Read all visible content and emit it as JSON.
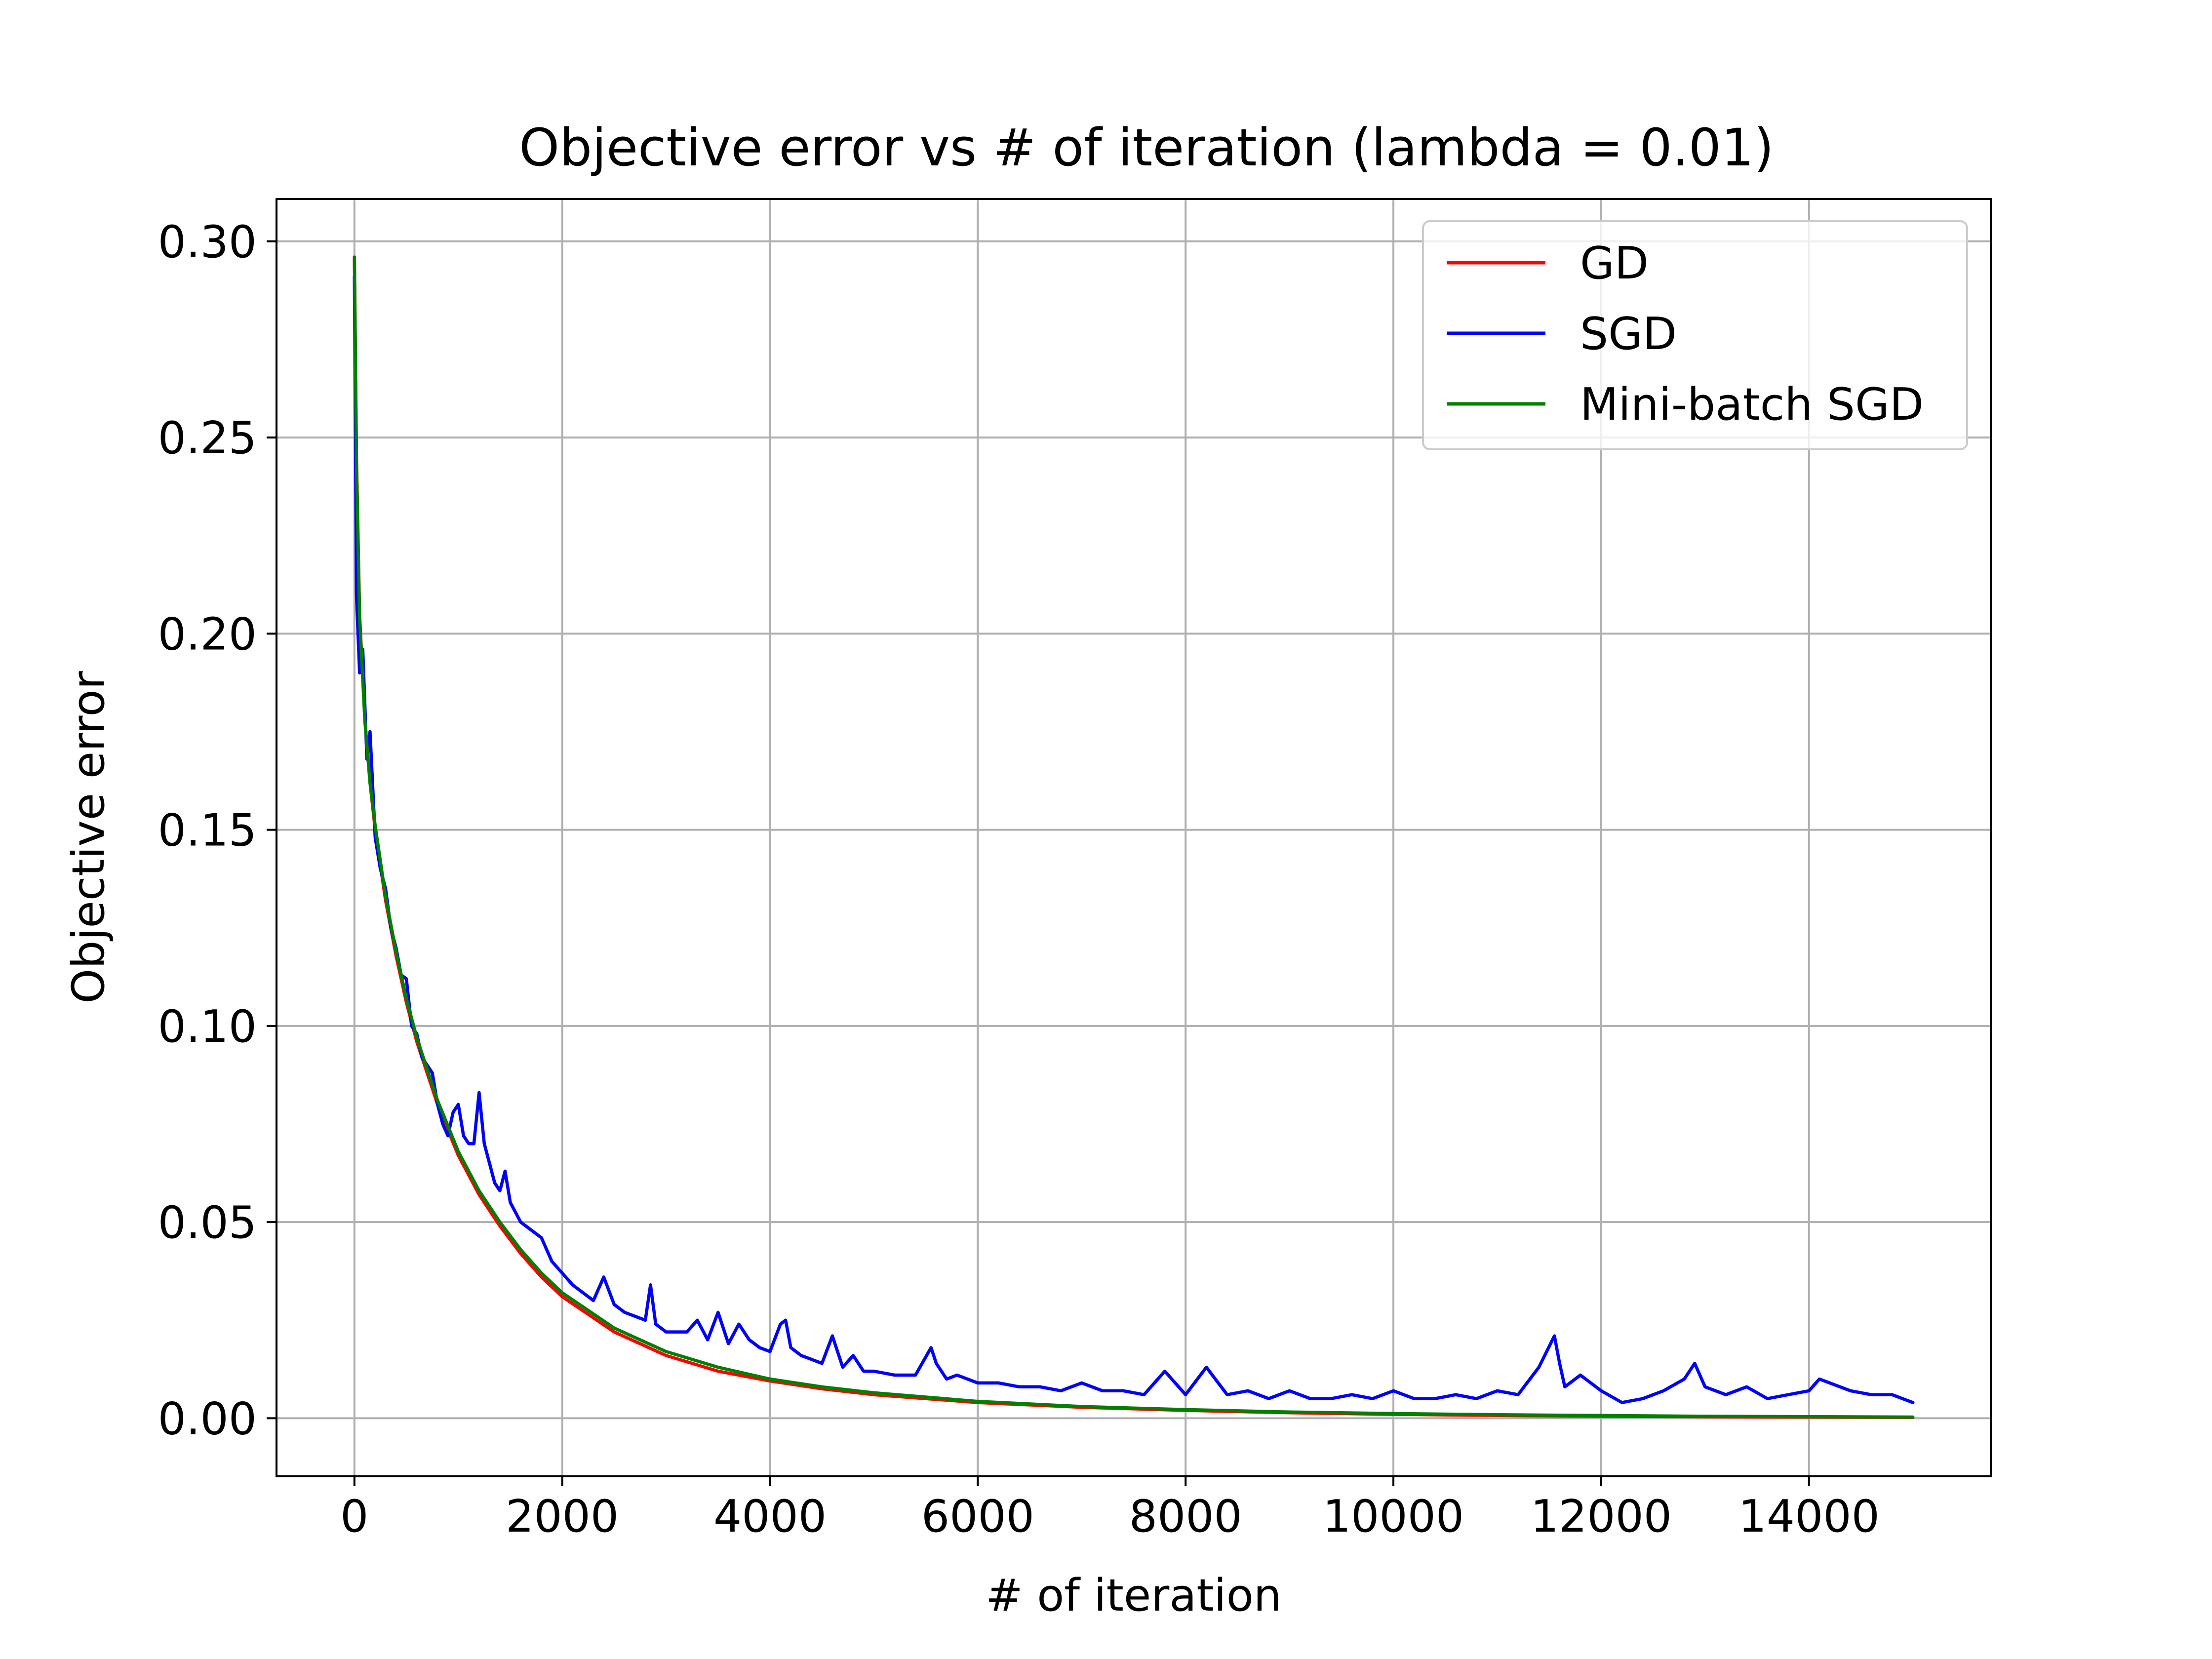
{
  "chart_data": {
    "type": "line",
    "title": "Objective error vs # of iteration (lambda = 0.01)",
    "xlabel": "# of iteration",
    "ylabel": "Objective error",
    "xlim": [
      -750,
      15750
    ],
    "ylim": [
      -0.0148,
      0.3108
    ],
    "xticks": [
      0,
      2000,
      4000,
      6000,
      8000,
      10000,
      12000,
      14000
    ],
    "xtick_labels": [
      "0",
      "2000",
      "4000",
      "6000",
      "8000",
      "10000",
      "12000",
      "14000"
    ],
    "yticks": [
      0.0,
      0.05,
      0.1,
      0.15,
      0.2,
      0.25,
      0.3
    ],
    "ytick_labels": [
      "0.00",
      "0.05",
      "0.10",
      "0.15",
      "0.20",
      "0.25",
      "0.30"
    ],
    "grid": true,
    "legend_position": "top-right",
    "series": [
      {
        "name": "GD",
        "color": "#ff0000",
        "x": [
          0,
          20,
          50,
          100,
          150,
          200,
          300,
          400,
          500,
          600,
          800,
          1000,
          1200,
          1400,
          1600,
          1800,
          2000,
          2500,
          3000,
          3500,
          4000,
          4500,
          5000,
          6000,
          7000,
          8000,
          9000,
          10000,
          11000,
          12000,
          13000,
          14000,
          15000
        ],
        "y": [
          0.296,
          0.245,
          0.205,
          0.178,
          0.162,
          0.15,
          0.132,
          0.118,
          0.106,
          0.096,
          0.08,
          0.067,
          0.057,
          0.049,
          0.042,
          0.036,
          0.031,
          0.022,
          0.016,
          0.012,
          0.0095,
          0.0075,
          0.006,
          0.004,
          0.0028,
          0.002,
          0.0014,
          0.001,
          0.0007,
          0.0005,
          0.0004,
          0.0003,
          0.0002
        ]
      },
      {
        "name": "SGD",
        "color": "#0000ff",
        "x": [
          0,
          20,
          50,
          80,
          120,
          150,
          200,
          250,
          300,
          350,
          400,
          450,
          500,
          550,
          600,
          650,
          700,
          750,
          800,
          850,
          900,
          950,
          1000,
          1050,
          1100,
          1150,
          1200,
          1250,
          1300,
          1350,
          1400,
          1450,
          1500,
          1600,
          1700,
          1800,
          1900,
          2000,
          2100,
          2200,
          2300,
          2400,
          2500,
          2600,
          2700,
          2800,
          2850,
          2900,
          3000,
          3200,
          3300,
          3400,
          3500,
          3600,
          3700,
          3800,
          3900,
          4000,
          4100,
          4150,
          4200,
          4300,
          4400,
          4500,
          4600,
          4700,
          4800,
          4900,
          5000,
          5200,
          5400,
          5550,
          5600,
          5700,
          5800,
          6000,
          6200,
          6400,
          6600,
          6800,
          7000,
          7200,
          7400,
          7600,
          7800,
          8000,
          8200,
          8400,
          8600,
          8800,
          9000,
          9200,
          9400,
          9600,
          9800,
          10000,
          10200,
          10400,
          10600,
          10800,
          11000,
          11200,
          11400,
          11550,
          11600,
          11650,
          11800,
          12000,
          12200,
          12400,
          12600,
          12800,
          12900,
          13000,
          13200,
          13400,
          13600,
          13800,
          14000,
          14100,
          14200,
          14400,
          14600,
          14800,
          15000
        ],
        "y": [
          0.291,
          0.21,
          0.19,
          0.196,
          0.168,
          0.175,
          0.148,
          0.14,
          0.135,
          0.125,
          0.12,
          0.113,
          0.112,
          0.1,
          0.098,
          0.092,
          0.09,
          0.088,
          0.08,
          0.075,
          0.072,
          0.078,
          0.08,
          0.072,
          0.07,
          0.07,
          0.083,
          0.07,
          0.065,
          0.06,
          0.058,
          0.063,
          0.055,
          0.05,
          0.048,
          0.046,
          0.04,
          0.037,
          0.034,
          0.032,
          0.03,
          0.036,
          0.029,
          0.027,
          0.026,
          0.025,
          0.034,
          0.024,
          0.022,
          0.022,
          0.025,
          0.02,
          0.027,
          0.019,
          0.024,
          0.02,
          0.018,
          0.017,
          0.024,
          0.025,
          0.018,
          0.016,
          0.015,
          0.014,
          0.021,
          0.013,
          0.016,
          0.012,
          0.012,
          0.011,
          0.011,
          0.018,
          0.014,
          0.01,
          0.011,
          0.009,
          0.009,
          0.008,
          0.008,
          0.007,
          0.009,
          0.007,
          0.007,
          0.006,
          0.012,
          0.006,
          0.013,
          0.006,
          0.007,
          0.005,
          0.007,
          0.005,
          0.005,
          0.006,
          0.005,
          0.007,
          0.005,
          0.005,
          0.006,
          0.005,
          0.007,
          0.006,
          0.013,
          0.021,
          0.014,
          0.008,
          0.011,
          0.007,
          0.004,
          0.005,
          0.007,
          0.01,
          0.014,
          0.008,
          0.006,
          0.008,
          0.005,
          0.006,
          0.007,
          0.01,
          0.009,
          0.007,
          0.006,
          0.006,
          0.004
        ]
      },
      {
        "name": "Mini-batch SGD",
        "color": "#008000",
        "x": [
          0,
          20,
          50,
          100,
          150,
          200,
          300,
          400,
          500,
          600,
          800,
          1000,
          1200,
          1400,
          1600,
          1800,
          2000,
          2500,
          3000,
          3500,
          4000,
          4500,
          5000,
          6000,
          7000,
          8000,
          9000,
          10000,
          11000,
          12000,
          13000,
          14000,
          15000
        ],
        "y": [
          0.296,
          0.243,
          0.204,
          0.178,
          0.162,
          0.151,
          0.133,
          0.119,
          0.107,
          0.097,
          0.081,
          0.068,
          0.058,
          0.05,
          0.043,
          0.037,
          0.032,
          0.023,
          0.017,
          0.013,
          0.01,
          0.008,
          0.0065,
          0.0043,
          0.003,
          0.0022,
          0.0016,
          0.0012,
          0.0009,
          0.0007,
          0.0005,
          0.0004,
          0.0003
        ]
      }
    ]
  }
}
